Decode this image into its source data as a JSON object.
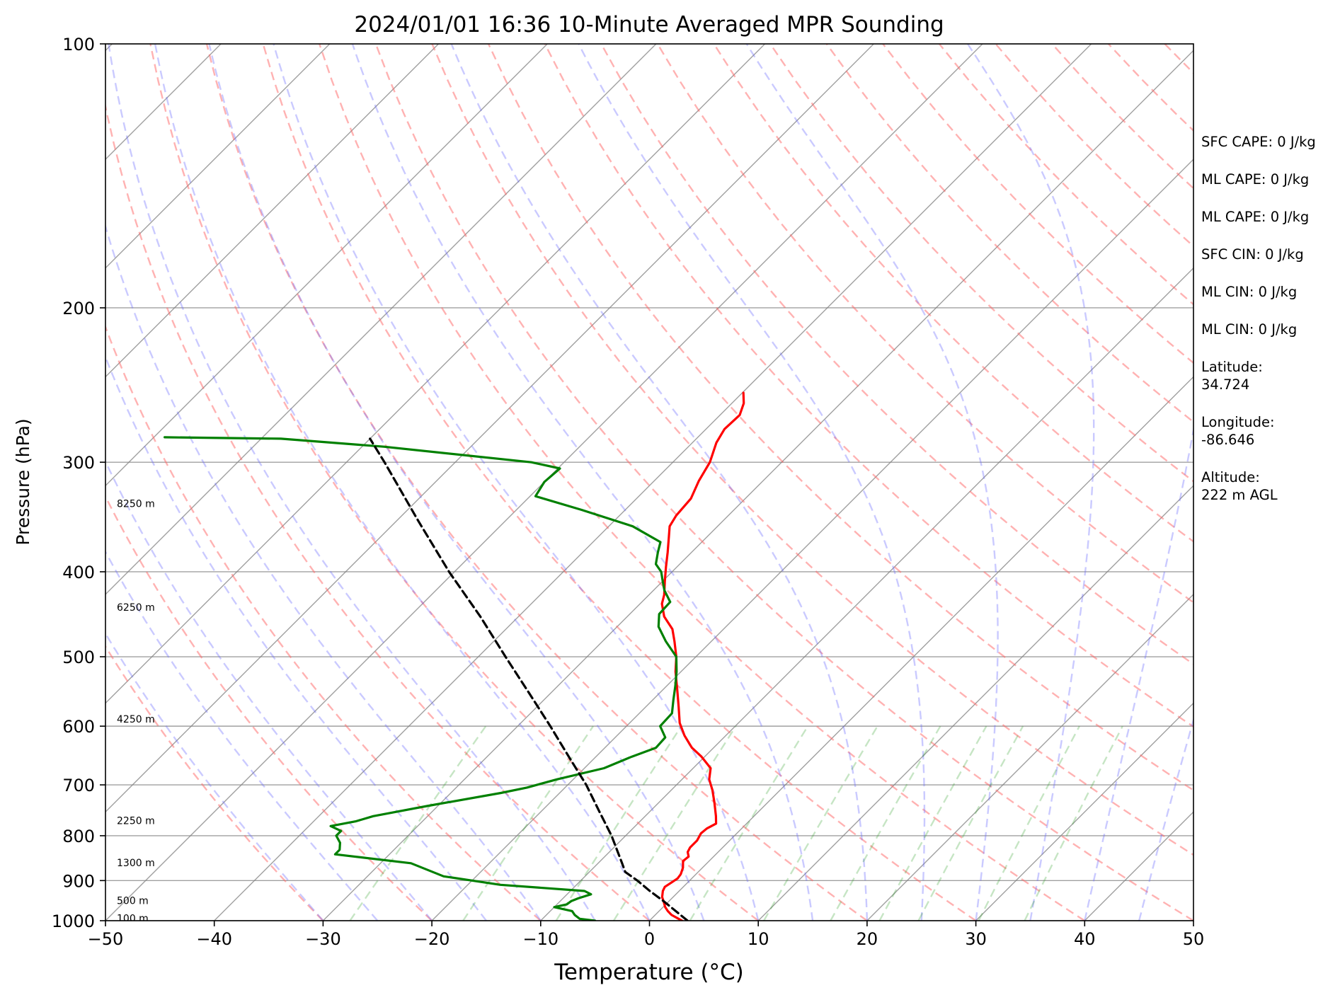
{
  "chart_data": {
    "type": "line",
    "chart_kind": "skew-T log-P diagram",
    "title": "2024/01/01 16:36 10-Minute Averaged MPR Sounding",
    "xlabel": "Temperature (°C)",
    "ylabel": "Pressure (hPa)",
    "xlim": [
      -50,
      50
    ],
    "ylim": [
      1000,
      100
    ],
    "y_scale": "log",
    "grid": true,
    "x_ticks": [
      -50,
      -40,
      -30,
      -20,
      -10,
      0,
      10,
      20,
      30,
      40,
      50
    ],
    "y_ticks": [
      1000,
      900,
      800,
      700,
      600,
      500,
      400,
      300,
      200,
      100
    ],
    "x_tick_labels": [
      "−50",
      "−40",
      "−30",
      "−20",
      "−10",
      "0",
      "10",
      "20",
      "30",
      "40",
      "50"
    ],
    "y_tick_labels": [
      "1000",
      "900",
      "800",
      "700",
      "600",
      "500",
      "400",
      "300",
      "200",
      "100"
    ],
    "height_labels": [
      {
        "text": "100 m",
        "p": 995
      },
      {
        "text": "500 m",
        "p": 950
      },
      {
        "text": "1300 m",
        "p": 860
      },
      {
        "text": "2250 m",
        "p": 770
      },
      {
        "text": "4250 m",
        "p": 590
      },
      {
        "text": "6250 m",
        "p": 440
      },
      {
        "text": "8250 m",
        "p": 335
      }
    ],
    "series": [
      {
        "role": "temperature",
        "color": "#ff0000",
        "points": [
          {
            "p": 1000,
            "t": 3.0
          },
          {
            "p": 995,
            "t": 2.5
          },
          {
            "p": 985,
            "t": 1.5
          },
          {
            "p": 975,
            "t": 0.8
          },
          {
            "p": 965,
            "t": 0.2
          },
          {
            "p": 950,
            "t": -0.5
          },
          {
            "p": 940,
            "t": -1.0
          },
          {
            "p": 925,
            "t": -1.5
          },
          {
            "p": 915,
            "t": -1.7
          },
          {
            "p": 905,
            "t": -1.5
          },
          {
            "p": 895,
            "t": -1.3
          },
          {
            "p": 885,
            "t": -1.4
          },
          {
            "p": 870,
            "t": -1.8
          },
          {
            "p": 855,
            "t": -2.4
          },
          {
            "p": 845,
            "t": -2.3
          },
          {
            "p": 835,
            "t": -2.8
          },
          {
            "p": 825,
            "t": -3.0
          },
          {
            "p": 810,
            "t": -3.0
          },
          {
            "p": 795,
            "t": -3.3
          },
          {
            "p": 785,
            "t": -3.2
          },
          {
            "p": 775,
            "t": -2.8
          },
          {
            "p": 760,
            "t": -3.5
          },
          {
            "p": 735,
            "t": -4.8
          },
          {
            "p": 710,
            "t": -6.2
          },
          {
            "p": 690,
            "t": -7.5
          },
          {
            "p": 670,
            "t": -8.4
          },
          {
            "p": 650,
            "t": -10.3
          },
          {
            "p": 635,
            "t": -12.0
          },
          {
            "p": 615,
            "t": -13.8
          },
          {
            "p": 595,
            "t": -15.4
          },
          {
            "p": 570,
            "t": -17.0
          },
          {
            "p": 545,
            "t": -18.7
          },
          {
            "p": 520,
            "t": -20.5
          },
          {
            "p": 500,
            "t": -21.8
          },
          {
            "p": 480,
            "t": -23.4
          },
          {
            "p": 465,
            "t": -24.7
          },
          {
            "p": 450,
            "t": -26.6
          },
          {
            "p": 435,
            "t": -28.0
          },
          {
            "p": 425,
            "t": -28.6
          },
          {
            "p": 410,
            "t": -29.8
          },
          {
            "p": 395,
            "t": -31.0
          },
          {
            "p": 380,
            "t": -32.2
          },
          {
            "p": 365,
            "t": -33.5
          },
          {
            "p": 355,
            "t": -34.4
          },
          {
            "p": 345,
            "t": -34.8
          },
          {
            "p": 330,
            "t": -35.0
          },
          {
            "p": 315,
            "t": -35.9
          },
          {
            "p": 300,
            "t": -36.6
          },
          {
            "p": 285,
            "t": -37.8
          },
          {
            "p": 275,
            "t": -38.3
          },
          {
            "p": 265,
            "t": -38.2
          },
          {
            "p": 257,
            "t": -38.9
          },
          {
            "p": 250,
            "t": -39.9
          }
        ]
      },
      {
        "role": "dewpoint",
        "color": "#008000",
        "points": [
          {
            "p": 1000,
            "t": -5.0
          },
          {
            "p": 995,
            "t": -6.6
          },
          {
            "p": 985,
            "t": -7.4
          },
          {
            "p": 975,
            "t": -8.0
          },
          {
            "p": 965,
            "t": -10.0
          },
          {
            "p": 958,
            "t": -9.1
          },
          {
            "p": 950,
            "t": -9.0
          },
          {
            "p": 943,
            "t": -8.6
          },
          {
            "p": 933,
            "t": -7.8
          },
          {
            "p": 925,
            "t": -8.7
          },
          {
            "p": 910,
            "t": -17.0
          },
          {
            "p": 890,
            "t": -23.0
          },
          {
            "p": 860,
            "t": -27.2
          },
          {
            "p": 840,
            "t": -35.0
          },
          {
            "p": 830,
            "t": -35.0
          },
          {
            "p": 815,
            "t": -35.6
          },
          {
            "p": 800,
            "t": -36.6
          },
          {
            "p": 790,
            "t": -36.6
          },
          {
            "p": 780,
            "t": -38.0
          },
          {
            "p": 770,
            "t": -36.1
          },
          {
            "p": 760,
            "t": -35.0
          },
          {
            "p": 740,
            "t": -31.0
          },
          {
            "p": 715,
            "t": -25.4
          },
          {
            "p": 705,
            "t": -23.5
          },
          {
            "p": 690,
            "t": -21.5
          },
          {
            "p": 670,
            "t": -18.2
          },
          {
            "p": 650,
            "t": -16.7
          },
          {
            "p": 635,
            "t": -15.3
          },
          {
            "p": 618,
            "t": -15.4
          },
          {
            "p": 600,
            "t": -16.9
          },
          {
            "p": 580,
            "t": -17.0
          },
          {
            "p": 560,
            "t": -18.1
          },
          {
            "p": 540,
            "t": -19.2
          },
          {
            "p": 520,
            "t": -20.4
          },
          {
            "p": 500,
            "t": -21.8
          },
          {
            "p": 480,
            "t": -24.2
          },
          {
            "p": 462,
            "t": -26.2
          },
          {
            "p": 447,
            "t": -27.3
          },
          {
            "p": 433,
            "t": -27.4
          },
          {
            "p": 420,
            "t": -29.0
          },
          {
            "p": 410,
            "t": -30.0
          },
          {
            "p": 400,
            "t": -31.0
          },
          {
            "p": 392,
            "t": -32.2
          },
          {
            "p": 380,
            "t": -33.1
          },
          {
            "p": 370,
            "t": -33.8
          },
          {
            "p": 355,
            "t": -37.8
          },
          {
            "p": 340,
            "t": -44.0
          },
          {
            "p": 328,
            "t": -49.5
          },
          {
            "p": 316,
            "t": -50.0
          },
          {
            "p": 305,
            "t": -49.8
          },
          {
            "p": 300,
            "t": -53.0
          },
          {
            "p": 288,
            "t": -68.0
          },
          {
            "p": 282,
            "t": -78.2
          },
          {
            "p": 281,
            "t": -89.0
          }
        ]
      },
      {
        "role": "parcel",
        "color": "#000000",
        "style": "dashed",
        "points": [
          {
            "p": 1000,
            "t": 3.5
          },
          {
            "p": 950,
            "t": -0.5
          },
          {
            "p": 925,
            "t": -2.7
          },
          {
            "p": 900,
            "t": -4.8
          },
          {
            "p": 880,
            "t": -6.7
          },
          {
            "p": 860,
            "t": -7.8
          },
          {
            "p": 800,
            "t": -11.3
          },
          {
            "p": 750,
            "t": -14.7
          },
          {
            "p": 700,
            "t": -18.3
          },
          {
            "p": 650,
            "t": -22.5
          },
          {
            "p": 600,
            "t": -27.0
          },
          {
            "p": 550,
            "t": -32.0
          },
          {
            "p": 500,
            "t": -37.5
          },
          {
            "p": 450,
            "t": -43.5
          },
          {
            "p": 400,
            "t": -50.5
          },
          {
            "p": 350,
            "t": -58.0
          },
          {
            "p": 300,
            "t": -66.5
          },
          {
            "p": 282,
            "t": -70.0
          }
        ]
      }
    ],
    "reference_lines": {
      "isotherm_color": "#808080",
      "dry_adiabat_color": "#ff6666",
      "moist_adiabat_color": "#6666ff",
      "mixing_ratio_color": "#33a02c"
    }
  },
  "side_info": [
    "SFC CAPE: 0 J/kg",
    "ML CAPE: 0 J/kg",
    "ML CAPE: 0 J/kg",
    "SFC CIN: 0 J/kg",
    "ML CIN: 0 J/kg",
    "ML CIN: 0 J/kg",
    "Latitude:\n34.724",
    "Longitude:\n-86.646",
    "Altitude:\n222 m AGL"
  ]
}
